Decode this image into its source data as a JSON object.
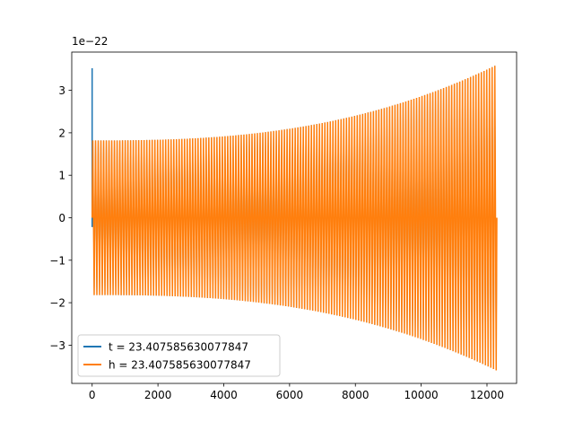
{
  "chart_data": {
    "type": "line",
    "title": "",
    "xlabel": "",
    "ylabel": "",
    "xlim": [
      -620,
      12900
    ],
    "ylim": [
      -3.9,
      3.9
    ],
    "x_ticks": [
      0,
      2000,
      4000,
      6000,
      8000,
      10000,
      12000
    ],
    "x_tick_labels": [
      "0",
      "2000",
      "4000",
      "6000",
      "8000",
      "10000",
      "12000"
    ],
    "y_ticks": [
      -3,
      -2,
      -1,
      0,
      1,
      2,
      3
    ],
    "y_tick_labels": [
      "−3",
      "−2",
      "−1",
      "0",
      "1",
      "2",
      "3"
    ],
    "y_offset_label": "1e−22",
    "grid": false,
    "legend_position": "lower-left",
    "series": [
      {
        "name": "t = 23.407585630077847",
        "color": "#1f77b4",
        "spike": {
          "x": 0,
          "y_top": 3.52,
          "y_bottom": -0.22
        },
        "x_range": [
          0,
          12300
        ],
        "envelope_start": 1.82,
        "envelope_end": 3.6
      },
      {
        "name": "h = 23.407585630077847",
        "color": "#ff7f0e",
        "x_range": [
          0,
          12300
        ],
        "envelope_start": 1.82,
        "envelope_end": 3.6
      }
    ]
  }
}
